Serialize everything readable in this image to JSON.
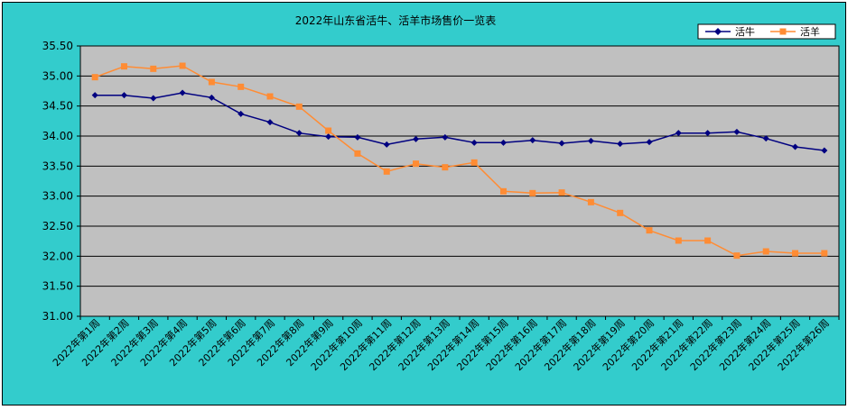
{
  "colors": {
    "background": "#33CCCC",
    "plot_area": "#C0C0C0",
    "live_cattle": "#000080",
    "live_sheep": "#FF8C34"
  },
  "chart_data": {
    "type": "line",
    "title": "2022年山东省活牛、活羊市场售价一览表",
    "xlabel": "",
    "ylabel": "",
    "ylim": [
      31.0,
      35.5
    ],
    "ytick_step": 0.5,
    "grid": true,
    "legend_position": "top-right",
    "categories": [
      "2022年第1周",
      "2022年第2周",
      "2022年第3周",
      "2022年第4周",
      "2022年第5周",
      "2022年第6周",
      "2022年第7周",
      "2022年第8周",
      "2022年第9周",
      "2022年第10周",
      "2022年第11周",
      "2022年第12周",
      "2022年第13周",
      "2022年第14周",
      "2022年第15周",
      "2022年第16周",
      "2022年第17周",
      "2022年第18周",
      "2022年第19周",
      "2022年第20周",
      "2022年第21周",
      "2022年第22周",
      "2022年第23周",
      "2022年第24周",
      "2022年第25周",
      "2022年第26周"
    ],
    "series": [
      {
        "name": "活牛",
        "marker": "diamond",
        "values": [
          34.68,
          34.68,
          34.63,
          34.72,
          34.64,
          34.37,
          34.23,
          34.05,
          33.99,
          33.98,
          33.86,
          33.95,
          33.98,
          33.89,
          33.89,
          33.93,
          33.88,
          33.92,
          33.87,
          33.9,
          34.05,
          34.05,
          34.07,
          33.96,
          33.82,
          33.76
        ]
      },
      {
        "name": "活羊",
        "marker": "square",
        "values": [
          34.98,
          35.16,
          35.12,
          35.17,
          34.9,
          34.82,
          34.66,
          34.49,
          34.09,
          33.71,
          33.41,
          33.54,
          33.48,
          33.56,
          33.08,
          33.05,
          33.06,
          32.9,
          32.72,
          32.43,
          32.26,
          32.26,
          32.01,
          32.08,
          32.05,
          32.05
        ]
      }
    ]
  }
}
